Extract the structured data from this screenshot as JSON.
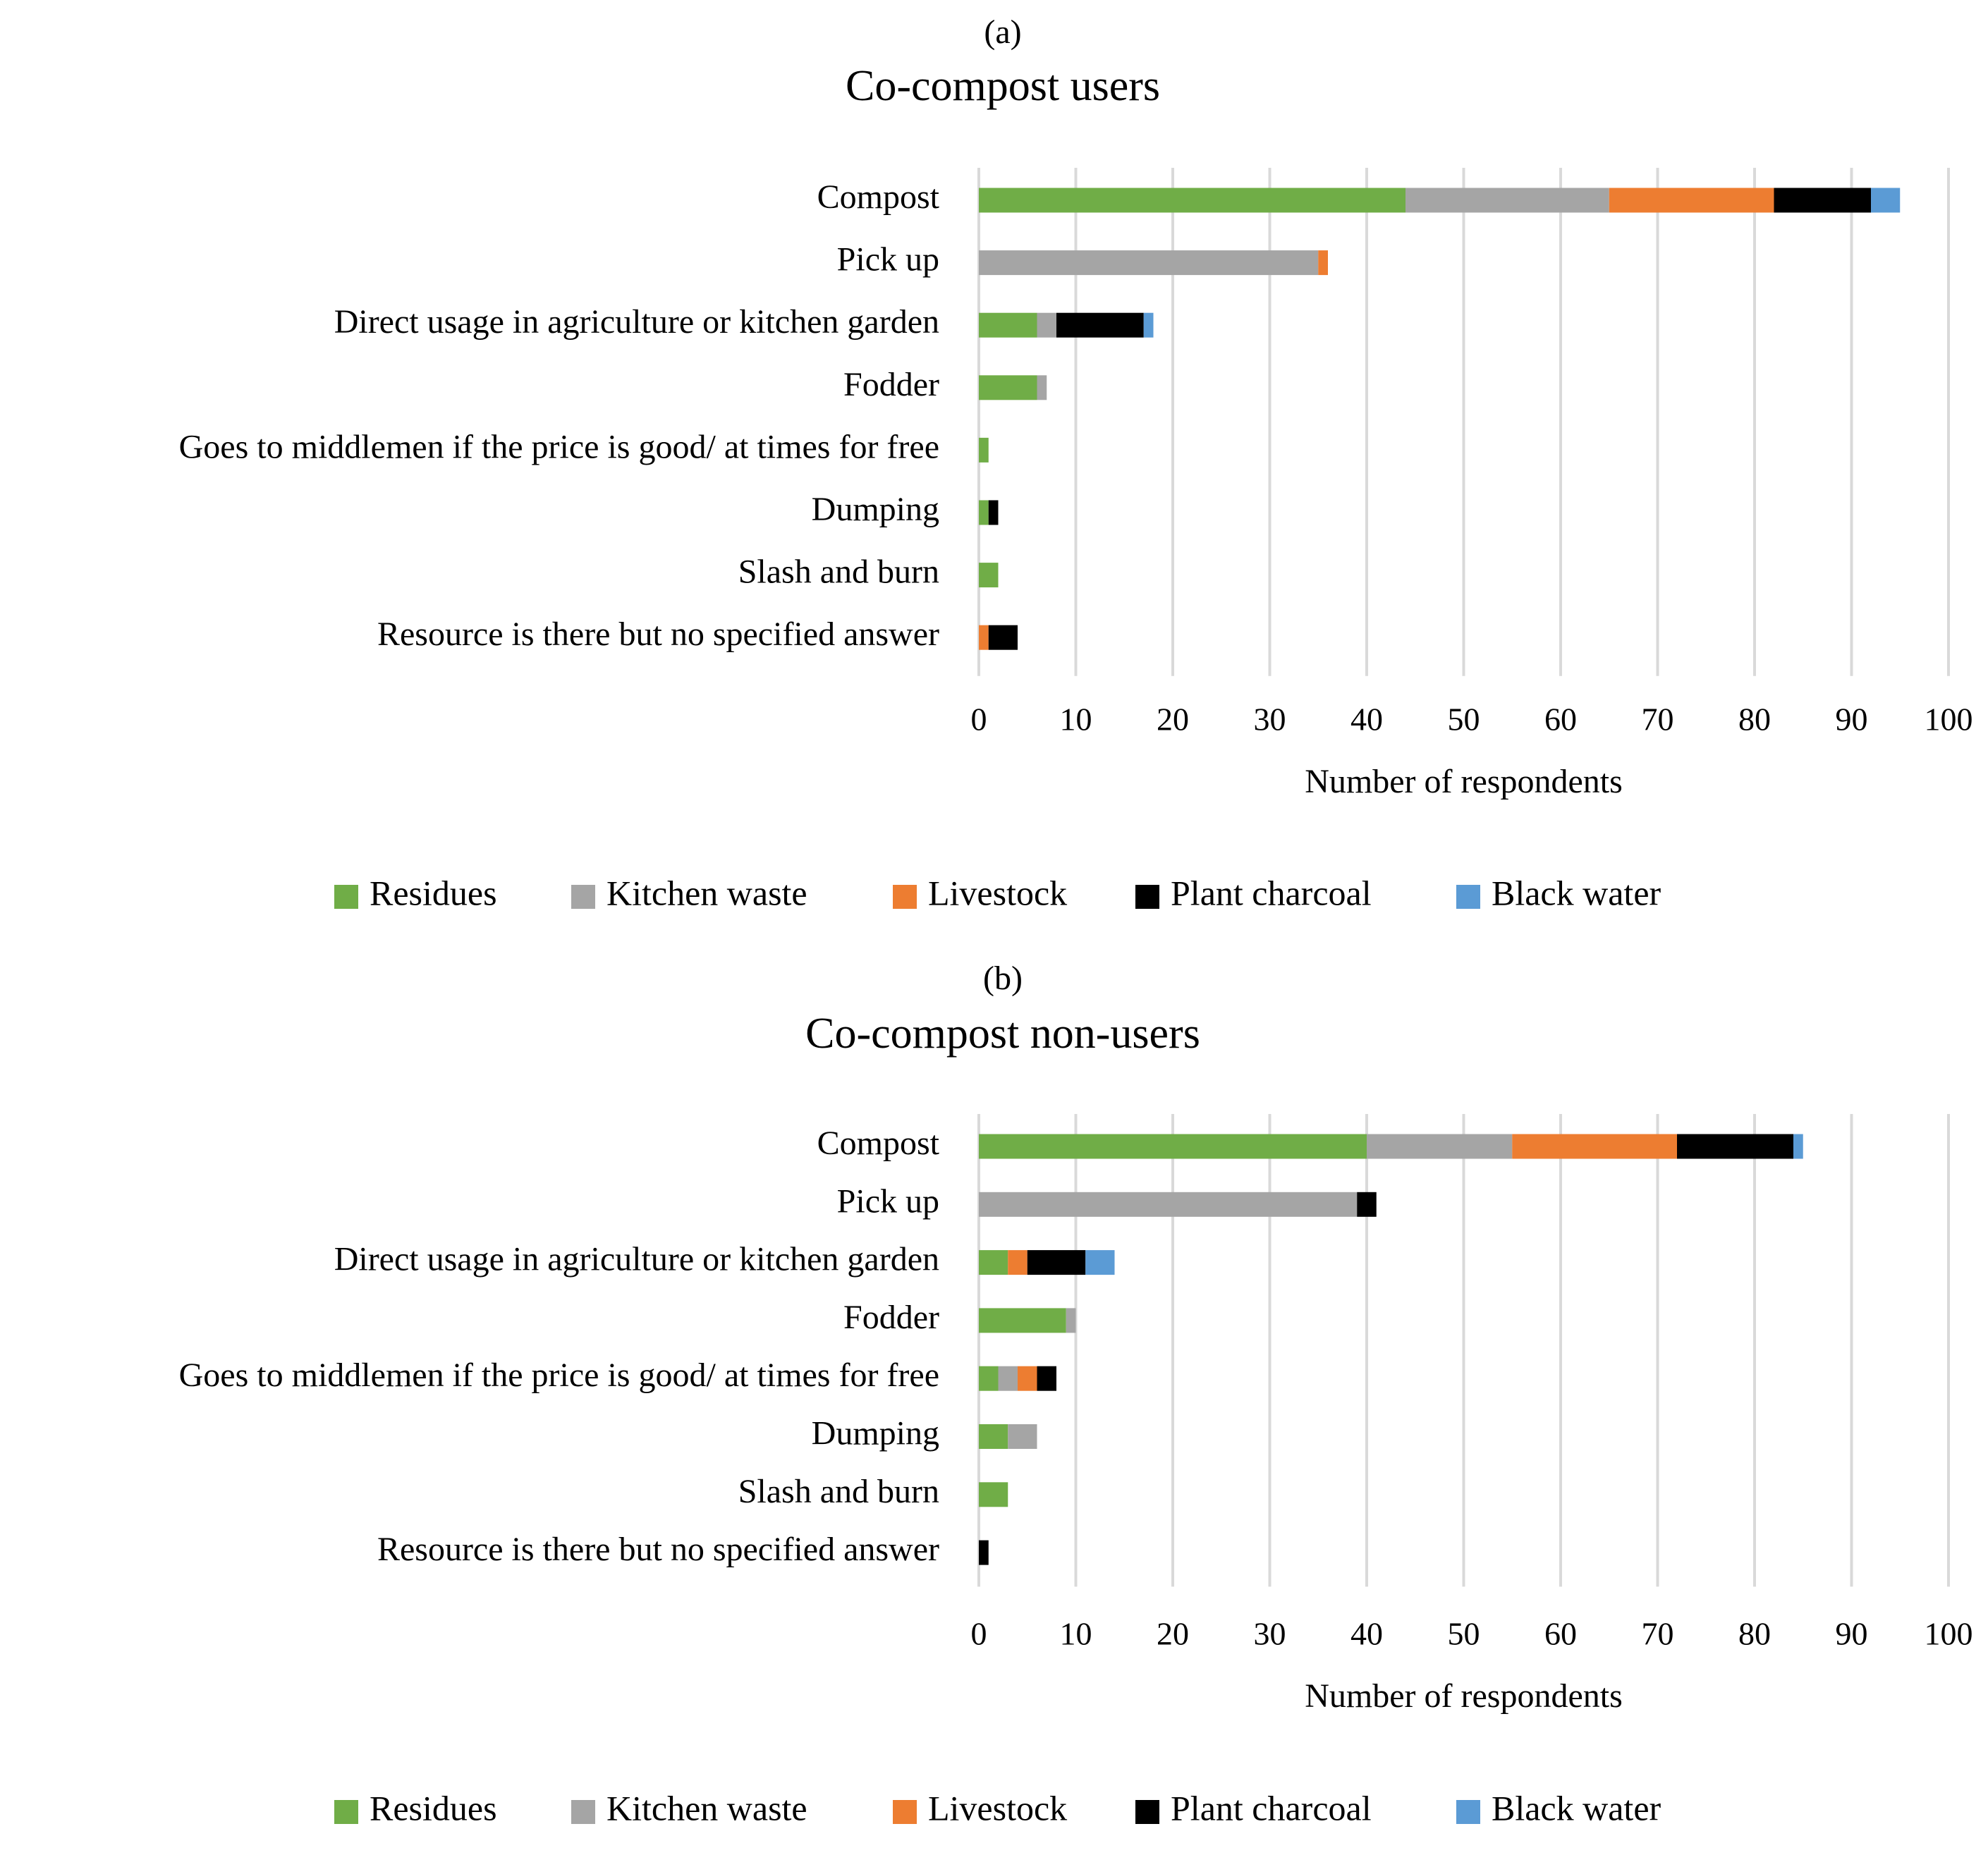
{
  "chart_data": [
    {
      "type": "bar",
      "orientation": "horizontal",
      "stacked": true,
      "panel_label": "(a)",
      "title": "Co-compost users",
      "xlabel": "Number of respondents",
      "ylabel": "",
      "xlim": [
        0,
        100
      ],
      "xticks": [
        0,
        10,
        20,
        30,
        40,
        50,
        60,
        70,
        80,
        90,
        100
      ],
      "grid": "vertical",
      "legend_position": "bottom",
      "categories": [
        "Compost",
        "Pick up",
        "Direct usage in agriculture or kitchen garden",
        "Fodder",
        "Goes to middlemen if the price is good/ at times for free",
        "Dumping",
        "Slash and burn",
        "Resource is there but no specified answer"
      ],
      "series": [
        {
          "name": "Residues",
          "color": "#70ad47",
          "values": [
            44,
            0,
            6,
            6,
            1,
            1,
            2,
            0
          ]
        },
        {
          "name": "Kitchen waste",
          "color": "#a5a5a5",
          "values": [
            21,
            35,
            2,
            1,
            0,
            0,
            0,
            0
          ]
        },
        {
          "name": "Livestock",
          "color": "#ed7d31",
          "values": [
            17,
            1,
            0,
            0,
            0,
            0,
            0,
            1
          ]
        },
        {
          "name": "Plant charcoal",
          "color": "#000000",
          "values": [
            10,
            0,
            9,
            0,
            0,
            1,
            0,
            3
          ]
        },
        {
          "name": "Black water",
          "color": "#5b9bd5",
          "values": [
            3,
            0,
            1,
            0,
            0,
            0,
            0,
            0
          ]
        }
      ]
    },
    {
      "type": "bar",
      "orientation": "horizontal",
      "stacked": true,
      "panel_label": "(b)",
      "title": "Co-compost non-users",
      "xlabel": "Number of respondents",
      "ylabel": "",
      "xlim": [
        0,
        100
      ],
      "xticks": [
        0,
        10,
        20,
        30,
        40,
        50,
        60,
        70,
        80,
        90,
        100
      ],
      "grid": "vertical",
      "legend_position": "bottom",
      "categories": [
        "Compost",
        "Pick up",
        "Direct usage in agriculture or kitchen garden",
        "Fodder",
        "Goes to middlemen if the price is good/ at times for free",
        "Dumping",
        "Slash and burn",
        "Resource is there but no specified answer"
      ],
      "series": [
        {
          "name": "Residues",
          "color": "#70ad47",
          "values": [
            40,
            0,
            3,
            9,
            2,
            3,
            3,
            0
          ]
        },
        {
          "name": "Kitchen waste",
          "color": "#a5a5a5",
          "values": [
            15,
            39,
            0,
            1,
            2,
            3,
            0,
            0
          ]
        },
        {
          "name": "Livestock",
          "color": "#ed7d31",
          "values": [
            17,
            0,
            2,
            0,
            2,
            0,
            0,
            0
          ]
        },
        {
          "name": "Plant charcoal",
          "color": "#000000",
          "values": [
            12,
            2,
            6,
            0,
            2,
            0,
            0,
            1
          ]
        },
        {
          "name": "Black water",
          "color": "#5b9bd5",
          "values": [
            1,
            0,
            3,
            0,
            0,
            0,
            0,
            0
          ]
        }
      ]
    }
  ]
}
